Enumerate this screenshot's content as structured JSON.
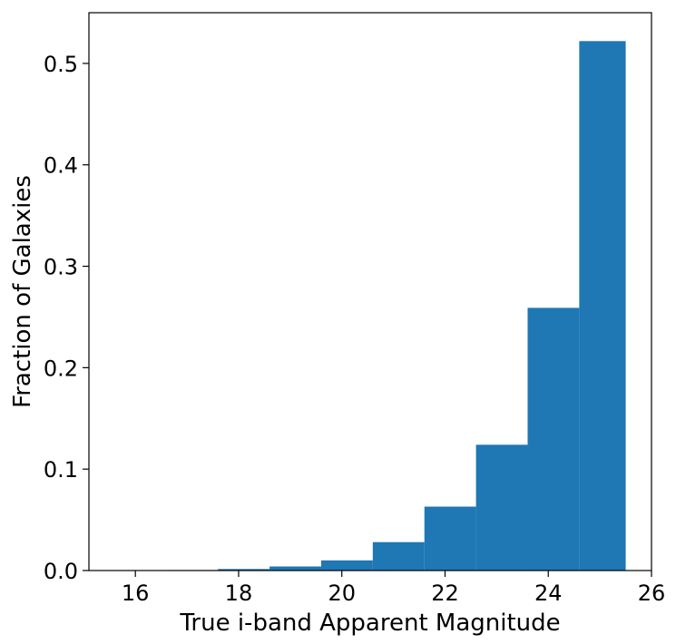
{
  "chart_data": {
    "type": "bar",
    "xlabel": "True i-band Apparent Magnitude",
    "ylabel": "Fraction of Galaxies",
    "xlim": [
      15.1,
      26.0
    ],
    "ylim": [
      0.0,
      0.55
    ],
    "xticks": [
      16,
      18,
      20,
      22,
      24,
      26
    ],
    "xtick_labels": [
      "16",
      "18",
      "20",
      "22",
      "24",
      "26"
    ],
    "yticks": [
      0.0,
      0.1,
      0.2,
      0.3,
      0.4,
      0.5
    ],
    "ytick_labels": [
      "0.0",
      "0.1",
      "0.2",
      "0.3",
      "0.4",
      "0.5"
    ],
    "bin_edges": [
      15.6,
      16.6,
      17.6,
      18.6,
      19.6,
      20.6,
      21.6,
      22.6,
      23.6,
      24.6,
      25.5
    ],
    "values": [
      0.0003,
      0.0005,
      0.0015,
      0.004,
      0.01,
      0.028,
      0.063,
      0.124,
      0.259,
      0.522
    ],
    "grid": false,
    "bar_color": "#1f77b4"
  }
}
